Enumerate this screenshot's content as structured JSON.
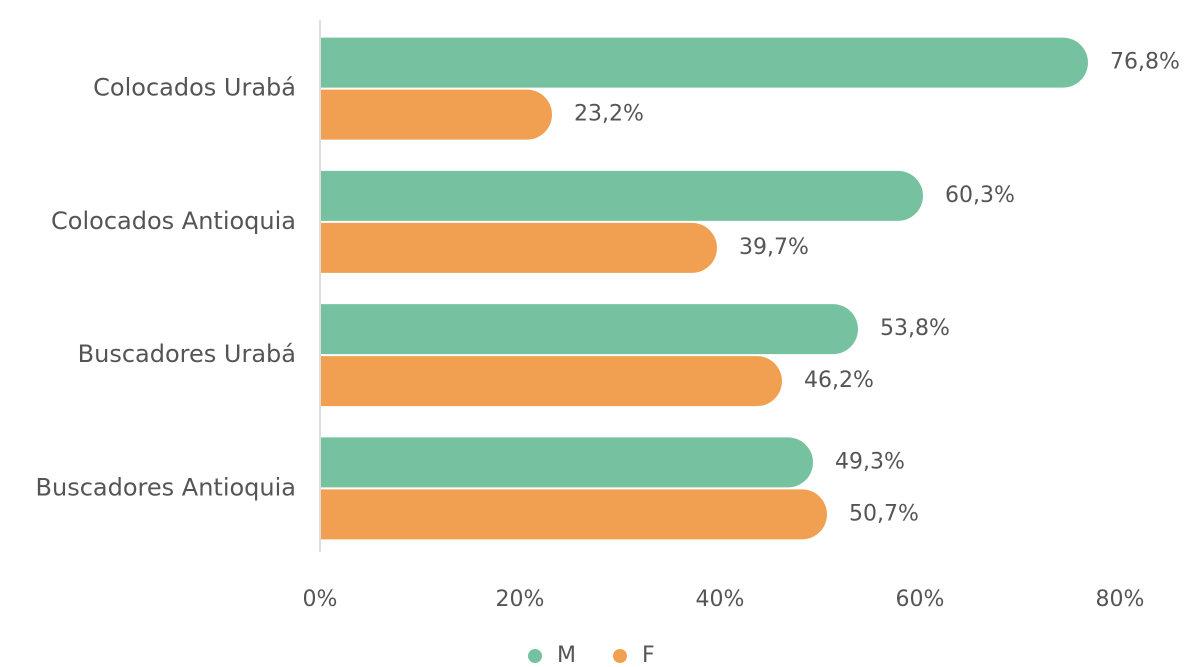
{
  "chart_data": {
    "type": "hbar",
    "categories": [
      "Colocados Urabá",
      "Colocados Antioquia",
      "Buscadores Urabá",
      "Buscadores Antioquia"
    ],
    "series": [
      {
        "name": "M",
        "color": "#76c2a0",
        "values": [
          76.8,
          60.3,
          53.8,
          49.3
        ],
        "value_labels": [
          "76,8%",
          "60,3%",
          "53,8%",
          "49,3%"
        ]
      },
      {
        "name": "F",
        "color": "#f0a050",
        "values": [
          23.2,
          39.7,
          46.2,
          50.7
        ],
        "value_labels": [
          "23,2%",
          "39,7%",
          "46,2%",
          "50,7%"
        ]
      }
    ],
    "xlim": [
      0,
      80
    ],
    "xticks": [
      {
        "value": 0,
        "label": "0%"
      },
      {
        "value": 20,
        "label": "20%"
      },
      {
        "value": 40,
        "label": "40%"
      },
      {
        "value": 60,
        "label": "60%"
      },
      {
        "value": 80,
        "label": "80%"
      }
    ],
    "legend": "bottom"
  }
}
